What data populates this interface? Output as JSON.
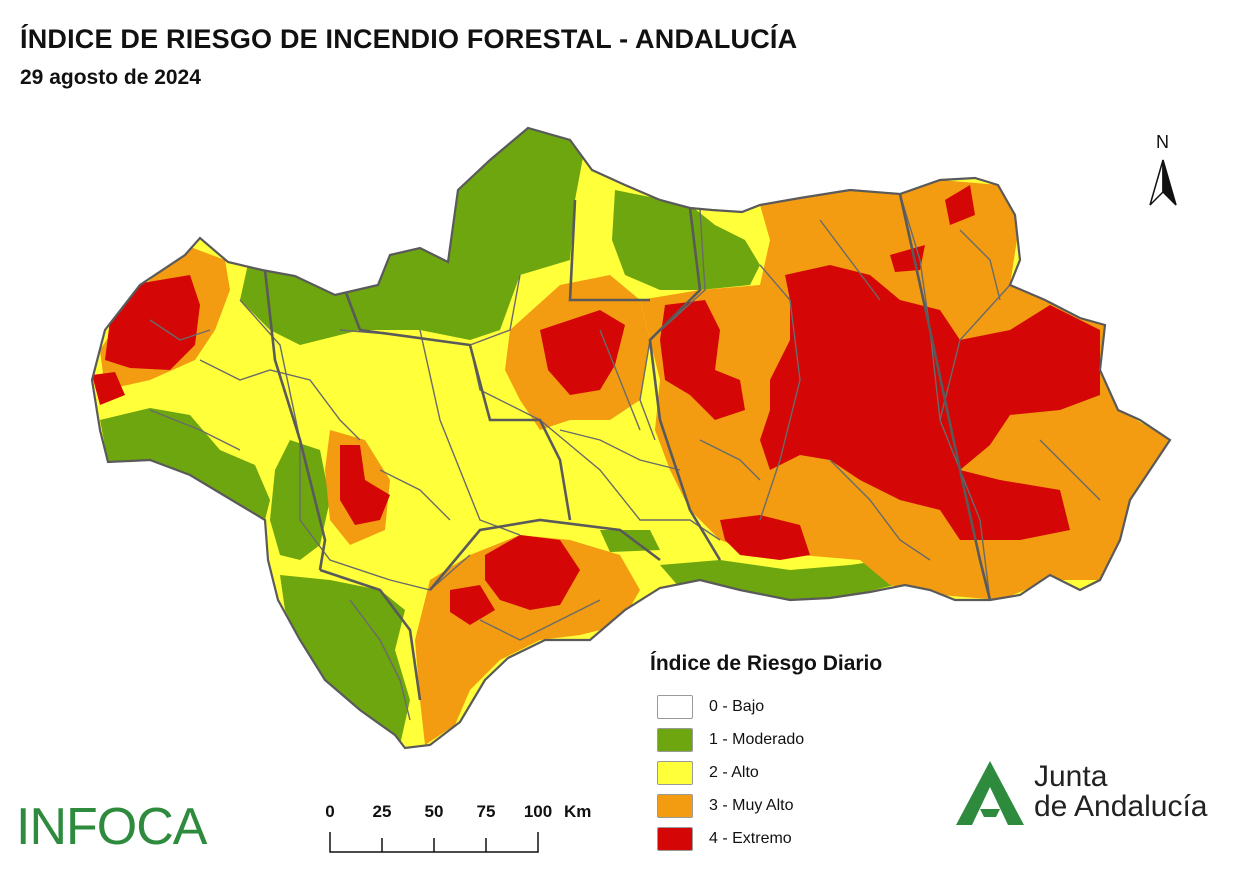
{
  "header": {
    "title": "ÍNDICE DE RIESGO DE INCENDIO FORESTAL - ANDALUCÍA",
    "date": "29 agosto de 2024"
  },
  "north_arrow": {
    "label": "N"
  },
  "legend": {
    "title": "Índice de Riesgo Diario",
    "items": [
      {
        "label": "0 - Bajo",
        "color": "#ffffff"
      },
      {
        "label": "1 - Moderado",
        "color": "#6ea60f"
      },
      {
        "label": "2 - Alto",
        "color": "#ffff3a"
      },
      {
        "label": "3 - Muy Alto",
        "color": "#f39c12"
      },
      {
        "label": "4 - Extremo",
        "color": "#d40606"
      }
    ]
  },
  "scale_bar": {
    "ticks": [
      "0",
      "25",
      "50",
      "75",
      "100"
    ],
    "unit": "Km"
  },
  "logos": {
    "infoca": "INFOCA",
    "junta_line1": "Junta",
    "junta_line2": "de Andalucía"
  },
  "colors": {
    "boundary": "#6a6a6a",
    "moderado": "#6ea60f",
    "alto": "#ffff3a",
    "muy_alto": "#f39c12",
    "extremo": "#d40606",
    "logo_green": "#2e8b3e"
  }
}
